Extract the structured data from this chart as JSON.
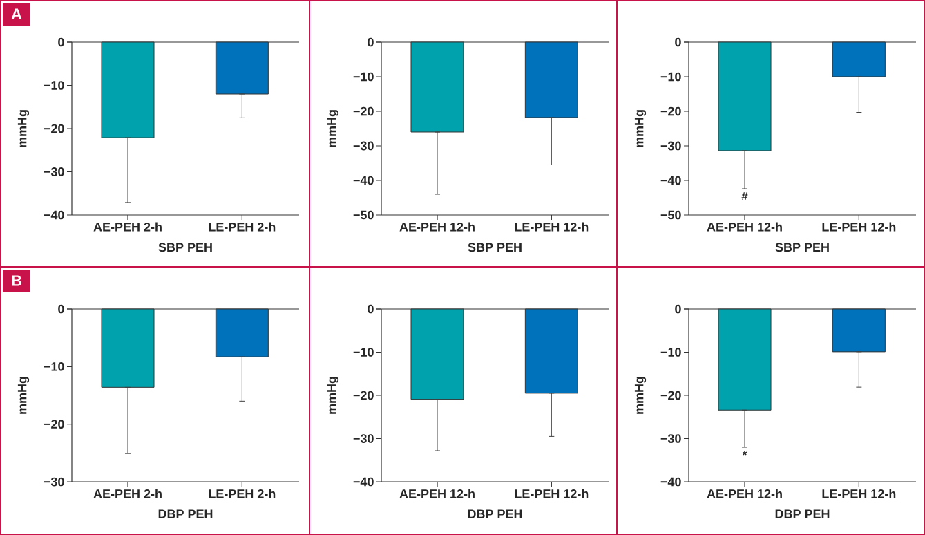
{
  "chart_data": [
    {
      "type": "bar",
      "annotations": [
        "A"
      ],
      "xlabel": "SBP PEH",
      "ylabel": "mmHg",
      "categories": [
        "AE-PEH 2-h",
        "LE-PEH 2-h"
      ],
      "values": [
        -22.1,
        -12.0
      ],
      "colors": [
        "#00a3ad",
        "#0072bc"
      ],
      "errors": [
        [
          -37.1,
          -22.1
        ],
        [
          -17.5,
          -12.0
        ]
      ],
      "ylim": [
        -40,
        0
      ],
      "yticks": [
        {
          "value": -40,
          "label": "−40"
        },
        {
          "value": -30,
          "label": "−30"
        },
        {
          "value": -20,
          "label": "−20"
        },
        {
          "value": -10,
          "label": "−10"
        },
        0
      ]
    },
    {
      "type": "bar",
      "xlabel": "SBP PEH",
      "ylabel": "mmHg",
      "categories": [
        "AE-PEH 12-h",
        "LE-PEH 12-h"
      ],
      "values": [
        -26.0,
        -21.8
      ],
      "colors": [
        "#00a3ad",
        "#0072bc"
      ],
      "errors": [
        [
          -44.0,
          -26.0
        ],
        [
          -35.5,
          -21.8
        ]
      ],
      "ylim": [
        -50,
        0
      ],
      "yticks": [
        {
          "value": -50,
          "label": "−50"
        },
        {
          "value": -40,
          "label": "−40"
        },
        {
          "value": -30,
          "label": "−30"
        },
        {
          "value": -20,
          "label": "−20"
        },
        {
          "value": -10,
          "label": "−10"
        },
        0
      ]
    },
    {
      "type": "bar",
      "annotations": [
        "#"
      ],
      "xlabel": "SBP PEH",
      "ylabel": "mmHg",
      "categories": [
        "AE-PEH 12-h",
        "LE-PEH 12-h"
      ],
      "values": [
        -31.4,
        -10.0
      ],
      "colors": [
        "#00a3ad",
        "#0072bc"
      ],
      "errors": [
        [
          -42.4,
          -31.4
        ],
        [
          -20.3,
          -10.0
        ]
      ],
      "ylim": [
        -50,
        0
      ],
      "yticks": [
        {
          "value": -50,
          "label": "−50"
        },
        {
          "value": -40,
          "label": "−40"
        },
        {
          "value": -30,
          "label": "−30"
        },
        {
          "value": -20,
          "label": "−20"
        },
        {
          "value": -10,
          "label": "−10"
        },
        0
      ]
    },
    {
      "type": "bar",
      "annotations": [
        "B"
      ],
      "xlabel": "DBP PEH",
      "ylabel": "mmHg",
      "categories": [
        "AE-PEH 2-h",
        "LE-PEH 2-h"
      ],
      "values": [
        -13.6,
        -8.3
      ],
      "colors": [
        "#00a3ad",
        "#0072bc"
      ],
      "errors": [
        [
          -25.1,
          -13.6
        ],
        [
          -16.0,
          -8.3
        ]
      ],
      "ylim": [
        -30,
        0
      ],
      "yticks": [
        {
          "value": -30,
          "label": "−30"
        },
        {
          "value": -20,
          "label": "−20"
        },
        {
          "value": -10,
          "label": "−10"
        },
        0
      ]
    },
    {
      "type": "bar",
      "xlabel": "DBP PEH",
      "ylabel": "mmHg",
      "categories": [
        "AE-PEH 12-h",
        "LE-PEH 12-h"
      ],
      "values": [
        -20.9,
        -19.5
      ],
      "colors": [
        "#00a3ad",
        "#0072bc"
      ],
      "errors": [
        [
          -32.8,
          -20.9
        ],
        [
          -29.5,
          -19.5
        ]
      ],
      "ylim": [
        -40,
        0
      ],
      "yticks": [
        {
          "value": -40,
          "label": "−40"
        },
        {
          "value": -30,
          "label": "−30"
        },
        {
          "value": -20,
          "label": "−20"
        },
        {
          "value": -10,
          "label": "−10"
        },
        0
      ]
    },
    {
      "type": "bar",
      "annotations": [
        "*"
      ],
      "xlabel": "DBP PEH",
      "ylabel": "mmHg",
      "categories": [
        "AE-PEH 12-h",
        "LE-PEH 12-h"
      ],
      "values": [
        -23.4,
        -9.9
      ],
      "colors": [
        "#00a3ad",
        "#0072bc"
      ],
      "errors": [
        [
          -32.0,
          -23.4
        ],
        [
          -18.1,
          -9.9
        ]
      ],
      "ylim": [
        -40,
        0
      ],
      "yticks": [
        {
          "value": -40,
          "label": "−40"
        },
        {
          "value": -30,
          "label": "−30"
        },
        {
          "value": -20,
          "label": "−20"
        },
        {
          "value": -10,
          "label": "−10"
        },
        0
      ]
    }
  ]
}
